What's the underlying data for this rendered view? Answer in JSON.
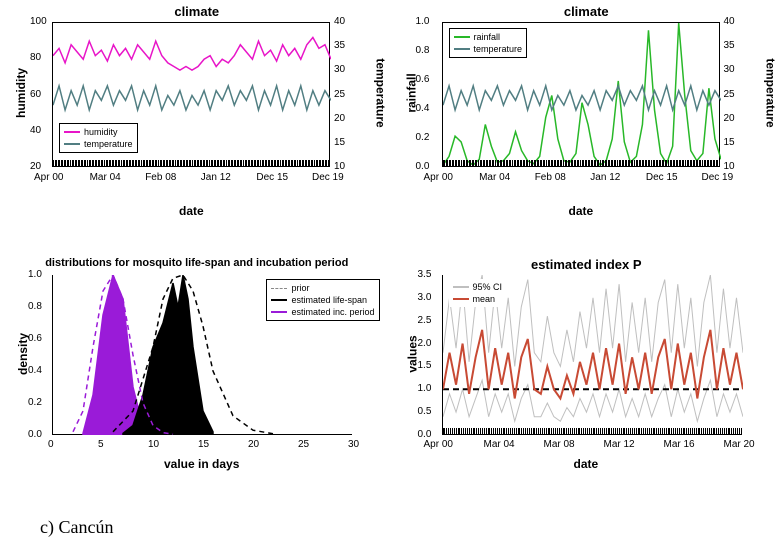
{
  "caption": "c) Cancún",
  "panels": {
    "topLeft": {
      "title": "climate",
      "xlabel": "date",
      "ylabel_left": "humidity",
      "ylabel_right": "temperature",
      "x_ticks": [
        "Apr 00",
        "Mar 04",
        "Feb 08",
        "Jan 12",
        "Dec 15",
        "Dec 19"
      ],
      "y_left_ticks": [
        20,
        40,
        60,
        80,
        100
      ],
      "y_right_ticks": [
        10,
        15,
        20,
        25,
        30,
        35,
        40
      ],
      "y_left_lim": [
        20,
        100
      ],
      "y_right_lim": [
        10,
        40
      ],
      "series": {
        "humidity": {
          "color": "#e815c8",
          "label": "humidity",
          "values": [
            82,
            86,
            78,
            88,
            84,
            80,
            90,
            82,
            85,
            79,
            88,
            82,
            86,
            80,
            88,
            84,
            80,
            90,
            82,
            78,
            76,
            74,
            76,
            74,
            76,
            80,
            82,
            76,
            80,
            78,
            82,
            88,
            84,
            80,
            90,
            82,
            85,
            79,
            88,
            82,
            86,
            80,
            88,
            92,
            86,
            88,
            80
          ]
        },
        "temperature": {
          "color": "#517e82",
          "label": "temperature",
          "values": [
            23,
            27,
            22,
            26,
            23,
            27,
            22,
            26,
            24,
            27,
            23,
            26,
            24,
            27,
            22,
            26,
            23,
            27,
            22,
            25,
            23,
            26,
            22,
            25,
            23,
            26,
            22,
            26,
            24,
            27,
            23,
            26,
            24,
            27,
            22,
            26,
            23,
            27,
            22,
            26,
            23,
            27,
            22,
            26,
            23,
            26,
            24
          ]
        }
      },
      "legend_pos": "bottom-left",
      "title_fontsize": 13,
      "label_fontsize": 12,
      "line_width": 1.5
    },
    "topRight": {
      "title": "climate",
      "xlabel": "date",
      "ylabel_left": "rainfall",
      "ylabel_right": "temperature",
      "x_ticks": [
        "Apr 00",
        "Mar 04",
        "Feb 08",
        "Jan 12",
        "Dec 15",
        "Dec 19"
      ],
      "y_left_ticks": [
        0.0,
        0.2,
        0.4,
        0.6,
        0.8,
        1.0
      ],
      "y_right_ticks": [
        10,
        15,
        20,
        25,
        30,
        35,
        40
      ],
      "y_left_lim": [
        0,
        1
      ],
      "y_right_lim": [
        10,
        40
      ],
      "series": {
        "rainfall": {
          "color": "#28b828",
          "label": "rainfall",
          "values": [
            0.02,
            0.08,
            0.22,
            0.18,
            0.05,
            0.02,
            0.06,
            0.3,
            0.15,
            0.04,
            0.05,
            0.1,
            0.25,
            0.12,
            0.05,
            0.03,
            0.08,
            0.35,
            0.5,
            0.2,
            0.05,
            0.04,
            0.1,
            0.45,
            0.3,
            0.08,
            0.02,
            0.05,
            0.2,
            0.6,
            0.18,
            0.04,
            0.08,
            0.3,
            0.95,
            0.4,
            0.1,
            0.03,
            0.15,
            1.0,
            0.5,
            0.12,
            0.05,
            0.1,
            0.55,
            0.2,
            0.06
          ]
        },
        "temperature": {
          "color": "#517e82",
          "label": "temperature",
          "values": [
            23,
            27,
            22,
            26,
            23,
            27,
            22,
            26,
            24,
            27,
            23,
            26,
            24,
            27,
            22,
            26,
            23,
            27,
            22,
            25,
            23,
            26,
            22,
            25,
            23,
            26,
            22,
            26,
            24,
            27,
            23,
            26,
            24,
            27,
            22,
            26,
            23,
            27,
            22,
            26,
            23,
            27,
            22,
            26,
            23,
            26,
            24
          ]
        }
      },
      "legend_pos": "top-left",
      "title_fontsize": 13,
      "label_fontsize": 12,
      "line_width": 1.5
    },
    "bottomLeft": {
      "title": "distributions for mosquito life-span and incubation period",
      "xlabel": "value in days",
      "ylabel_left": "density",
      "x_ticks": [
        0,
        5,
        10,
        15,
        20,
        25,
        30
      ],
      "y_ticks": [
        0.0,
        0.2,
        0.4,
        0.6,
        0.8,
        1.0
      ],
      "xlim": [
        0,
        30
      ],
      "ylim": [
        0,
        1
      ],
      "series": {
        "prior_incubation": {
          "color": "#9a1bd8",
          "style": "dashed",
          "fill": false,
          "x": [
            2,
            3,
            4,
            5,
            6,
            7,
            8,
            9,
            10,
            11,
            12
          ],
          "y": [
            0.02,
            0.15,
            0.55,
            0.9,
            1.0,
            0.85,
            0.5,
            0.2,
            0.06,
            0.015,
            0.005
          ]
        },
        "prior_lifespan": {
          "color": "#000000",
          "style": "dashed",
          "fill": false,
          "x": [
            6,
            8,
            10,
            11,
            12,
            13,
            14,
            15,
            16,
            18,
            20,
            22
          ],
          "y": [
            0.02,
            0.15,
            0.55,
            0.85,
            0.98,
            1.0,
            0.9,
            0.68,
            0.4,
            0.12,
            0.03,
            0.008
          ]
        },
        "estimated_incubation": {
          "color": "#9a1bd8",
          "style": "solid",
          "fill": true,
          "x": [
            3,
            4,
            5,
            6,
            7,
            8,
            9,
            10
          ],
          "y": [
            0.01,
            0.25,
            0.75,
            1.0,
            0.85,
            0.3,
            0.05,
            0.01
          ]
        },
        "estimated_lifespan": {
          "color": "#000000",
          "style": "solid",
          "fill": true,
          "x": [
            7,
            8,
            9,
            10,
            11,
            12,
            12.5,
            13,
            13.5,
            14,
            15,
            16
          ],
          "y": [
            0.01,
            0.06,
            0.25,
            0.55,
            0.7,
            0.95,
            0.8,
            1.0,
            0.85,
            0.55,
            0.15,
            0.02
          ]
        }
      },
      "legend_items": [
        {
          "label": "prior",
          "style": "dashed",
          "color": "#888888"
        },
        {
          "label": "estimated life-span",
          "style": "solid",
          "color": "#000000"
        },
        {
          "label": "estimated inc. period",
          "style": "solid",
          "color": "#9a1bd8"
        }
      ],
      "legend_pos": "top-right",
      "title_fontsize": 11,
      "label_fontsize": 12,
      "line_width": 1.5
    },
    "bottomRight": {
      "title": "estimated index P",
      "xlabel": "date",
      "ylabel_left": "values",
      "x_ticks": [
        "Apr 00",
        "Mar 04",
        "Mar 08",
        "Mar 12",
        "Mar 16",
        "Mar 20"
      ],
      "y_ticks": [
        0.0,
        0.5,
        1.0,
        1.5,
        2.0,
        2.5,
        3.0,
        3.5
      ],
      "ylim": [
        0,
        3.5
      ],
      "ref_line": 1.0,
      "series": {
        "mean": {
          "color": "#c84a34",
          "label": "mean",
          "values": [
            1.0,
            1.8,
            1.1,
            2.0,
            0.9,
            1.7,
            2.3,
            1.0,
            1.9,
            1.1,
            1.8,
            0.8,
            1.7,
            2.1,
            1.0,
            0.9,
            1.5,
            1.0,
            0.8,
            1.3,
            0.9,
            1.6,
            1.1,
            1.8,
            1.0,
            1.9,
            1.1,
            2.0,
            0.9,
            1.7,
            1.0,
            1.8,
            0.9,
            1.7,
            2.1,
            1.0,
            2.0,
            1.1,
            1.8,
            0.8,
            1.7,
            2.3,
            1.0,
            1.9,
            1.1,
            1.8,
            1.0
          ]
        },
        "ci_upper": {
          "color": "#bfbfbf",
          "label": "95% CI",
          "values": [
            1.8,
            3.0,
            1.9,
            3.3,
            1.6,
            2.9,
            3.5,
            1.8,
            3.2,
            1.9,
            3.0,
            1.5,
            2.8,
            3.4,
            1.8,
            1.6,
            2.6,
            1.8,
            1.5,
            2.3,
            1.6,
            2.7,
            1.9,
            3.0,
            1.8,
            3.2,
            1.9,
            3.3,
            1.6,
            2.9,
            1.8,
            3.0,
            1.6,
            2.9,
            3.4,
            1.8,
            3.3,
            1.9,
            3.0,
            1.5,
            2.9,
            3.5,
            1.8,
            3.2,
            1.9,
            3.0,
            1.8
          ]
        },
        "ci_lower": {
          "color": "#bfbfbf",
          "values": [
            0.4,
            0.9,
            0.5,
            1.0,
            0.4,
            0.8,
            1.2,
            0.4,
            0.9,
            0.5,
            0.9,
            0.3,
            0.8,
            1.1,
            0.4,
            0.4,
            0.7,
            0.4,
            0.3,
            0.6,
            0.4,
            0.8,
            0.5,
            0.9,
            0.4,
            0.9,
            0.5,
            1.0,
            0.4,
            0.8,
            0.4,
            0.9,
            0.4,
            0.8,
            1.1,
            0.4,
            1.0,
            0.5,
            0.9,
            0.3,
            0.8,
            1.2,
            0.4,
            0.9,
            0.5,
            0.9,
            0.4
          ]
        }
      },
      "legend_pos": "top-left",
      "title_fontsize": 13,
      "label_fontsize": 12,
      "line_width": 2
    }
  },
  "colors": {
    "background": "#ffffff",
    "axis": "#000000"
  }
}
